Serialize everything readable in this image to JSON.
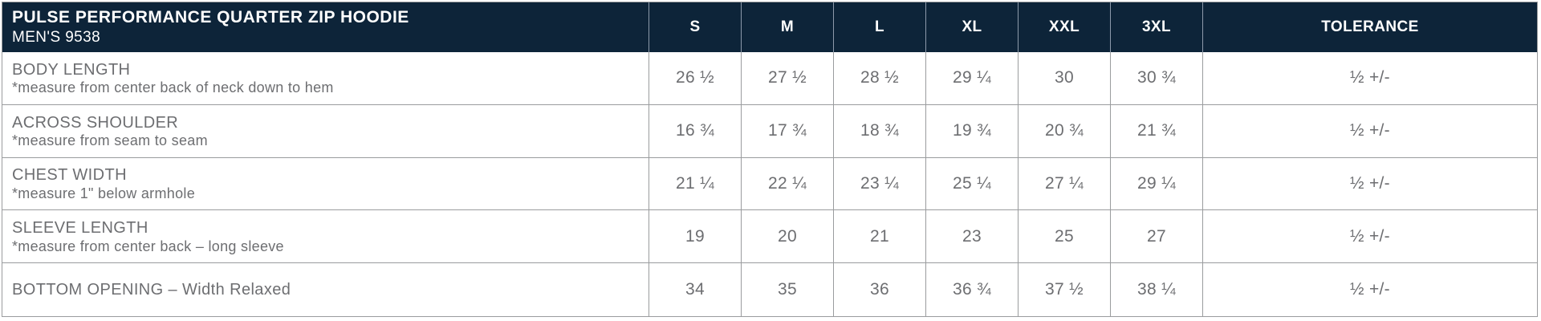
{
  "table": {
    "title": "PULSE PERFORMANCE QUARTER ZIP HOODIE",
    "subtitle": "MEN'S 9538",
    "size_headers": [
      "S",
      "M",
      "L",
      "XL",
      "XXL",
      "3XL"
    ],
    "tolerance_header": "TOLERANCE",
    "rows": [
      {
        "label": "BODY LENGTH",
        "note": "*measure from center back of neck down to hem",
        "values": [
          "26 ½",
          "27 ½",
          "28 ½",
          "29 ¼",
          "30",
          "30 ¾"
        ],
        "tolerance": "½ +/-"
      },
      {
        "label": "ACROSS SHOULDER",
        "note": "*measure from seam to seam",
        "values": [
          "16 ¾",
          "17 ¾",
          "18 ¾",
          "19 ¾",
          "20 ¾",
          "21 ¾"
        ],
        "tolerance": "½ +/-"
      },
      {
        "label": "CHEST WIDTH",
        "note": "*measure 1\" below armhole",
        "values": [
          "21 ¼",
          "22 ¼",
          "23 ¼",
          "25 ¼",
          "27 ¼",
          "29 ¼"
        ],
        "tolerance": "½ +/-"
      },
      {
        "label": "SLEEVE LENGTH",
        "note": "*measure from center back – long sleeve",
        "values": [
          "19",
          "20",
          "21",
          "23",
          "25",
          "27"
        ],
        "tolerance": "½ +/-"
      },
      {
        "label": "BOTTOM OPENING – Width Relaxed",
        "note": "",
        "values": [
          "34",
          "35",
          "36",
          "36 ¾",
          "37 ½",
          "38 ¼"
        ],
        "tolerance": "½ +/-"
      }
    ],
    "colors": {
      "header_bg": "#0d2439",
      "header_text": "#ffffff",
      "body_text": "#6d6e71",
      "border": "#9a9c9e",
      "header_divider": "#8d9aab"
    }
  }
}
